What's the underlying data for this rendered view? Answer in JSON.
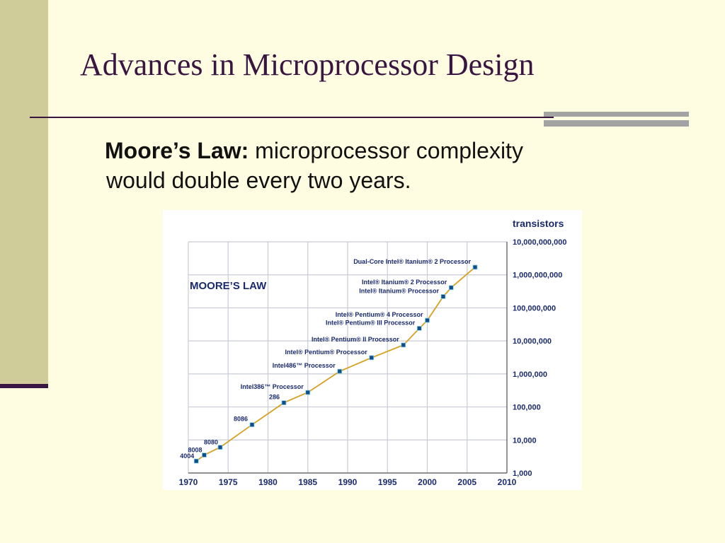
{
  "slide": {
    "title": "Advances in Microprocessor Design",
    "bullet_label": "Moore’s Law:",
    "bullet_text_line1": " microprocessor complexity",
    "bullet_text_line2": "would double every two years."
  },
  "colors": {
    "title": "#3b1541",
    "sidebar": "#cfcc99",
    "background": "#fffde1",
    "chart_line": "#d6a020",
    "chart_text": "#1a2a6e",
    "chart_marker": "#0d4f8a"
  },
  "chart_data": {
    "type": "line",
    "title": "MOORE’S LAW",
    "ylabel": "transistors",
    "y_scale": "log",
    "ylim": [
      1000,
      10000000000
    ],
    "xlim": [
      1970,
      2010
    ],
    "grid": true,
    "x_ticks": [
      "1970",
      "1975",
      "1980",
      "1985",
      "1990",
      "1995",
      "2000",
      "2005",
      "2010"
    ],
    "y_ticks": [
      "1,000",
      "10,000",
      "100,000",
      "1,000,000",
      "10,000,000",
      "100,000,000",
      "1,000,000,000",
      "10,000,000,000"
    ],
    "points": [
      {
        "x": 1971,
        "y": 2300,
        "label": "4004"
      },
      {
        "x": 1972,
        "y": 3500,
        "label": "8008"
      },
      {
        "x": 1974,
        "y": 6000,
        "label": "8080"
      },
      {
        "x": 1978,
        "y": 29000,
        "label": "8086"
      },
      {
        "x": 1982,
        "y": 134000,
        "label": "286"
      },
      {
        "x": 1985,
        "y": 275000,
        "label": "Intel386™ Processor"
      },
      {
        "x": 1989,
        "y": 1200000,
        "label": "Intel486™ Processor"
      },
      {
        "x": 1993,
        "y": 3100000,
        "label": "Intel® Pentium® Processor"
      },
      {
        "x": 1997,
        "y": 7500000,
        "label": "Intel® Pentium® II Processor"
      },
      {
        "x": 1999,
        "y": 24000000,
        "label": "Intel® Pentium® III Processor"
      },
      {
        "x": 2000,
        "y": 42000000,
        "label": "Intel® Pentium® 4 Processor"
      },
      {
        "x": 2002,
        "y": 220000000,
        "label": "Intel® Itanium® Processor"
      },
      {
        "x": 2003,
        "y": 410000000,
        "label": "Intel® Itanium® 2 Processor"
      },
      {
        "x": 2006,
        "y": 1700000000,
        "label": "Dual-Core Intel® Itanium® 2 Processor"
      }
    ]
  }
}
